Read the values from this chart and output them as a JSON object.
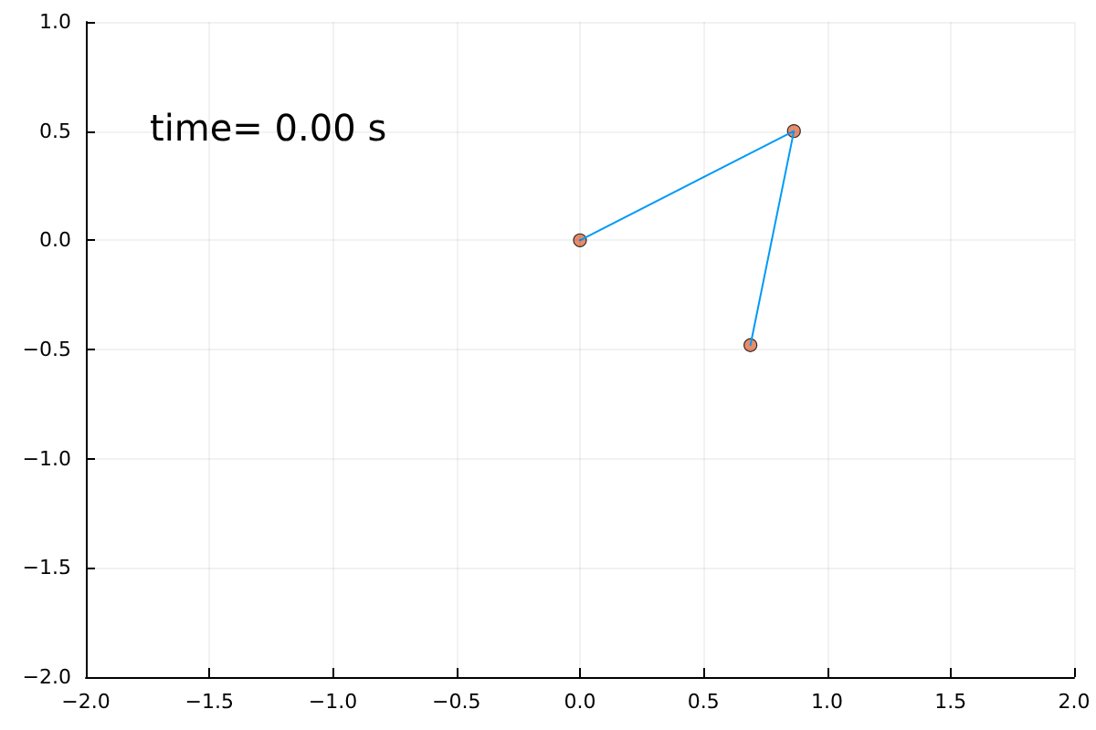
{
  "chart_data": {
    "type": "line",
    "x": [
      0,
      0.866,
      0.69
    ],
    "series": [
      {
        "color": "#009af9",
        "values": [
          0,
          0.5,
          -0.48
        ],
        "marker": "none"
      },
      {
        "type": "scatter",
        "color": "#e26f46",
        "values": [
          0,
          0.5,
          -0.48
        ],
        "marker": "circle"
      }
    ],
    "xlim": [
      -2,
      2
    ],
    "ylim": [
      -2,
      1
    ],
    "xticks": [
      {
        "value": -2,
        "label": "−2.0"
      },
      {
        "value": -1.5,
        "label": "−1.5"
      },
      {
        "value": -1,
        "label": "−1.0"
      },
      {
        "value": -0.5,
        "label": "−0.5"
      },
      {
        "value": 0,
        "label": "0.0"
      },
      {
        "value": 0.5,
        "label": "0.5"
      },
      {
        "value": 1,
        "label": "1.0"
      },
      {
        "value": 1.5,
        "label": "1.5"
      },
      {
        "value": 2,
        "label": "2.0"
      }
    ],
    "yticks": [
      {
        "value": -2,
        "label": "−2.0"
      },
      {
        "value": -1.5,
        "label": "−1.5"
      },
      {
        "value": -1,
        "label": "−1.0"
      },
      {
        "value": -0.5,
        "label": "−0.5"
      },
      {
        "value": 0,
        "label": "0.0"
      },
      {
        "value": 0.5,
        "label": "0.5"
      },
      {
        "value": 1,
        "label": "1.0"
      }
    ],
    "annotations": [
      "time= 0.00 s"
    ],
    "grid": true,
    "line_style": "solid"
  }
}
